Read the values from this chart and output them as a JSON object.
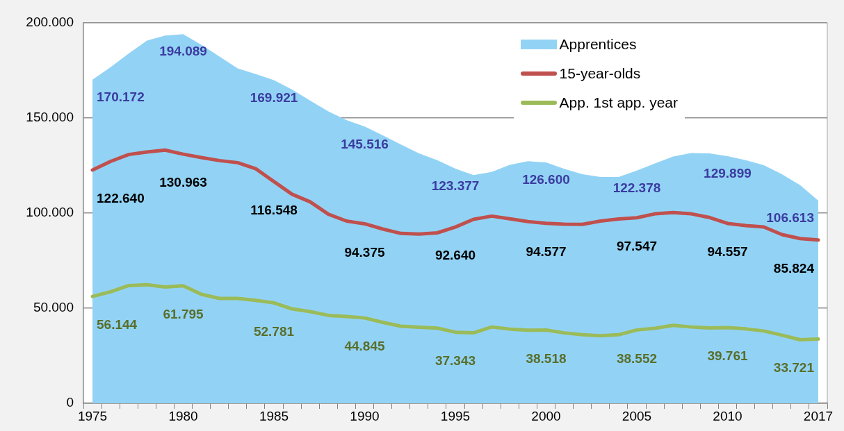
{
  "chart_data": {
    "type": "line",
    "categories": [
      "1975",
      null,
      null,
      null,
      null,
      "1980",
      null,
      null,
      null,
      null,
      "1985",
      null,
      null,
      null,
      null,
      "1990",
      null,
      null,
      null,
      null,
      "1995",
      null,
      null,
      null,
      null,
      "2000",
      null,
      null,
      null,
      null,
      "2005",
      null,
      null,
      null,
      null,
      "2010",
      null,
      null,
      null,
      null,
      "2017"
    ],
    "series": [
      {
        "name": "Apprentices",
        "type": "area",
        "color": "#92d3f5",
        "values": [
          170172,
          176700,
          183900,
          190700,
          193300,
          194089,
          188500,
          182300,
          176100,
          173100,
          169921,
          165000,
          159100,
          153500,
          148900,
          145516,
          140900,
          136000,
          131400,
          127800,
          123377,
          120000,
          121600,
          125400,
          127300,
          126600,
          123300,
          120400,
          119000,
          119000,
          122378,
          126100,
          129700,
          131600,
          131400,
          129899,
          127800,
          125200,
          120400,
          114700,
          106613
        ],
        "value_labels": [
          "170.172",
          null,
          null,
          null,
          null,
          "194.089",
          null,
          null,
          null,
          null,
          "169.921",
          null,
          null,
          null,
          null,
          "145.516",
          null,
          null,
          null,
          null,
          "123.377",
          null,
          null,
          null,
          null,
          "126.600",
          null,
          null,
          null,
          null,
          "122.378",
          null,
          null,
          null,
          null,
          "129.899",
          null,
          null,
          null,
          null,
          "106.613"
        ]
      },
      {
        "name": "15-year-olds",
        "type": "line",
        "color": "#c0504d",
        "values": [
          122640,
          127200,
          130800,
          132100,
          133100,
          130963,
          129200,
          127600,
          126500,
          123300,
          116548,
          109900,
          105900,
          99400,
          95800,
          94375,
          91600,
          89300,
          89000,
          89600,
          92640,
          96700,
          98400,
          97000,
          95500,
          94577,
          94200,
          94100,
          95800,
          96900,
          97547,
          99600,
          100300,
          99600,
          97700,
          94557,
          93400,
          92700,
          88700,
          86600,
          85824
        ],
        "value_labels": [
          "122.640",
          null,
          null,
          null,
          null,
          "130.963",
          null,
          null,
          null,
          null,
          "116.548",
          null,
          null,
          null,
          null,
          "94.375",
          null,
          null,
          null,
          null,
          "92.640",
          null,
          null,
          null,
          null,
          "94.577",
          null,
          null,
          null,
          null,
          "97.547",
          null,
          null,
          null,
          null,
          "94.557",
          null,
          null,
          null,
          null,
          "85.824"
        ]
      },
      {
        "name": "App. 1st app. year",
        "type": "line",
        "color": "#9bbb59",
        "values": [
          56144,
          58600,
          61900,
          62300,
          61100,
          61795,
          57300,
          55100,
          55100,
          54100,
          52781,
          49600,
          48200,
          46200,
          45600,
          44845,
          42500,
          40500,
          40000,
          39500,
          37343,
          37000,
          40100,
          39000,
          38400,
          38518,
          37000,
          36000,
          35500,
          36000,
          38552,
          39400,
          41000,
          40100,
          39600,
          39761,
          39100,
          38000,
          35800,
          33400,
          33721
        ],
        "value_labels": [
          "56.144",
          null,
          null,
          null,
          null,
          "61.795",
          null,
          null,
          null,
          null,
          "52.781",
          null,
          null,
          null,
          null,
          "44.845",
          null,
          null,
          null,
          null,
          "37.343",
          null,
          null,
          null,
          null,
          "38.518",
          null,
          null,
          null,
          null,
          "38.552",
          null,
          null,
          null,
          null,
          "39.761",
          null,
          null,
          null,
          null,
          "33.721"
        ]
      }
    ],
    "ylim": [
      0,
      200000
    ],
    "yticks": [
      0,
      {
        "value": 50000,
        "label": "50.000"
      },
      {
        "value": 100000,
        "label": "100.000"
      },
      {
        "value": 150000,
        "label": "150.000"
      },
      {
        "value": 200000,
        "label": "200.000"
      }
    ],
    "grid": "y",
    "legend": "top right"
  }
}
